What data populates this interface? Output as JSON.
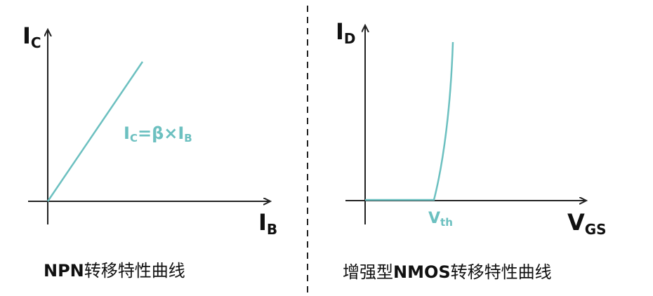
{
  "left": {
    "y_label": {
      "main": "I",
      "sub": "C"
    },
    "x_label": {
      "main": "I",
      "sub": "B"
    },
    "equation": {
      "p1": "I",
      "p2": "C",
      "p3": "=β×I",
      "p4": "B"
    },
    "caption": {
      "bold": "NPN",
      "rest": "转移特性曲线"
    }
  },
  "right": {
    "y_label": {
      "main": "I",
      "sub": "D"
    },
    "x_label": {
      "main": "V",
      "sub": "GS"
    },
    "threshold": {
      "main": "V",
      "sub": "th"
    },
    "caption": {
      "pre": "增强型",
      "bold": "NMOS",
      "rest": "转移特性曲线"
    }
  }
}
